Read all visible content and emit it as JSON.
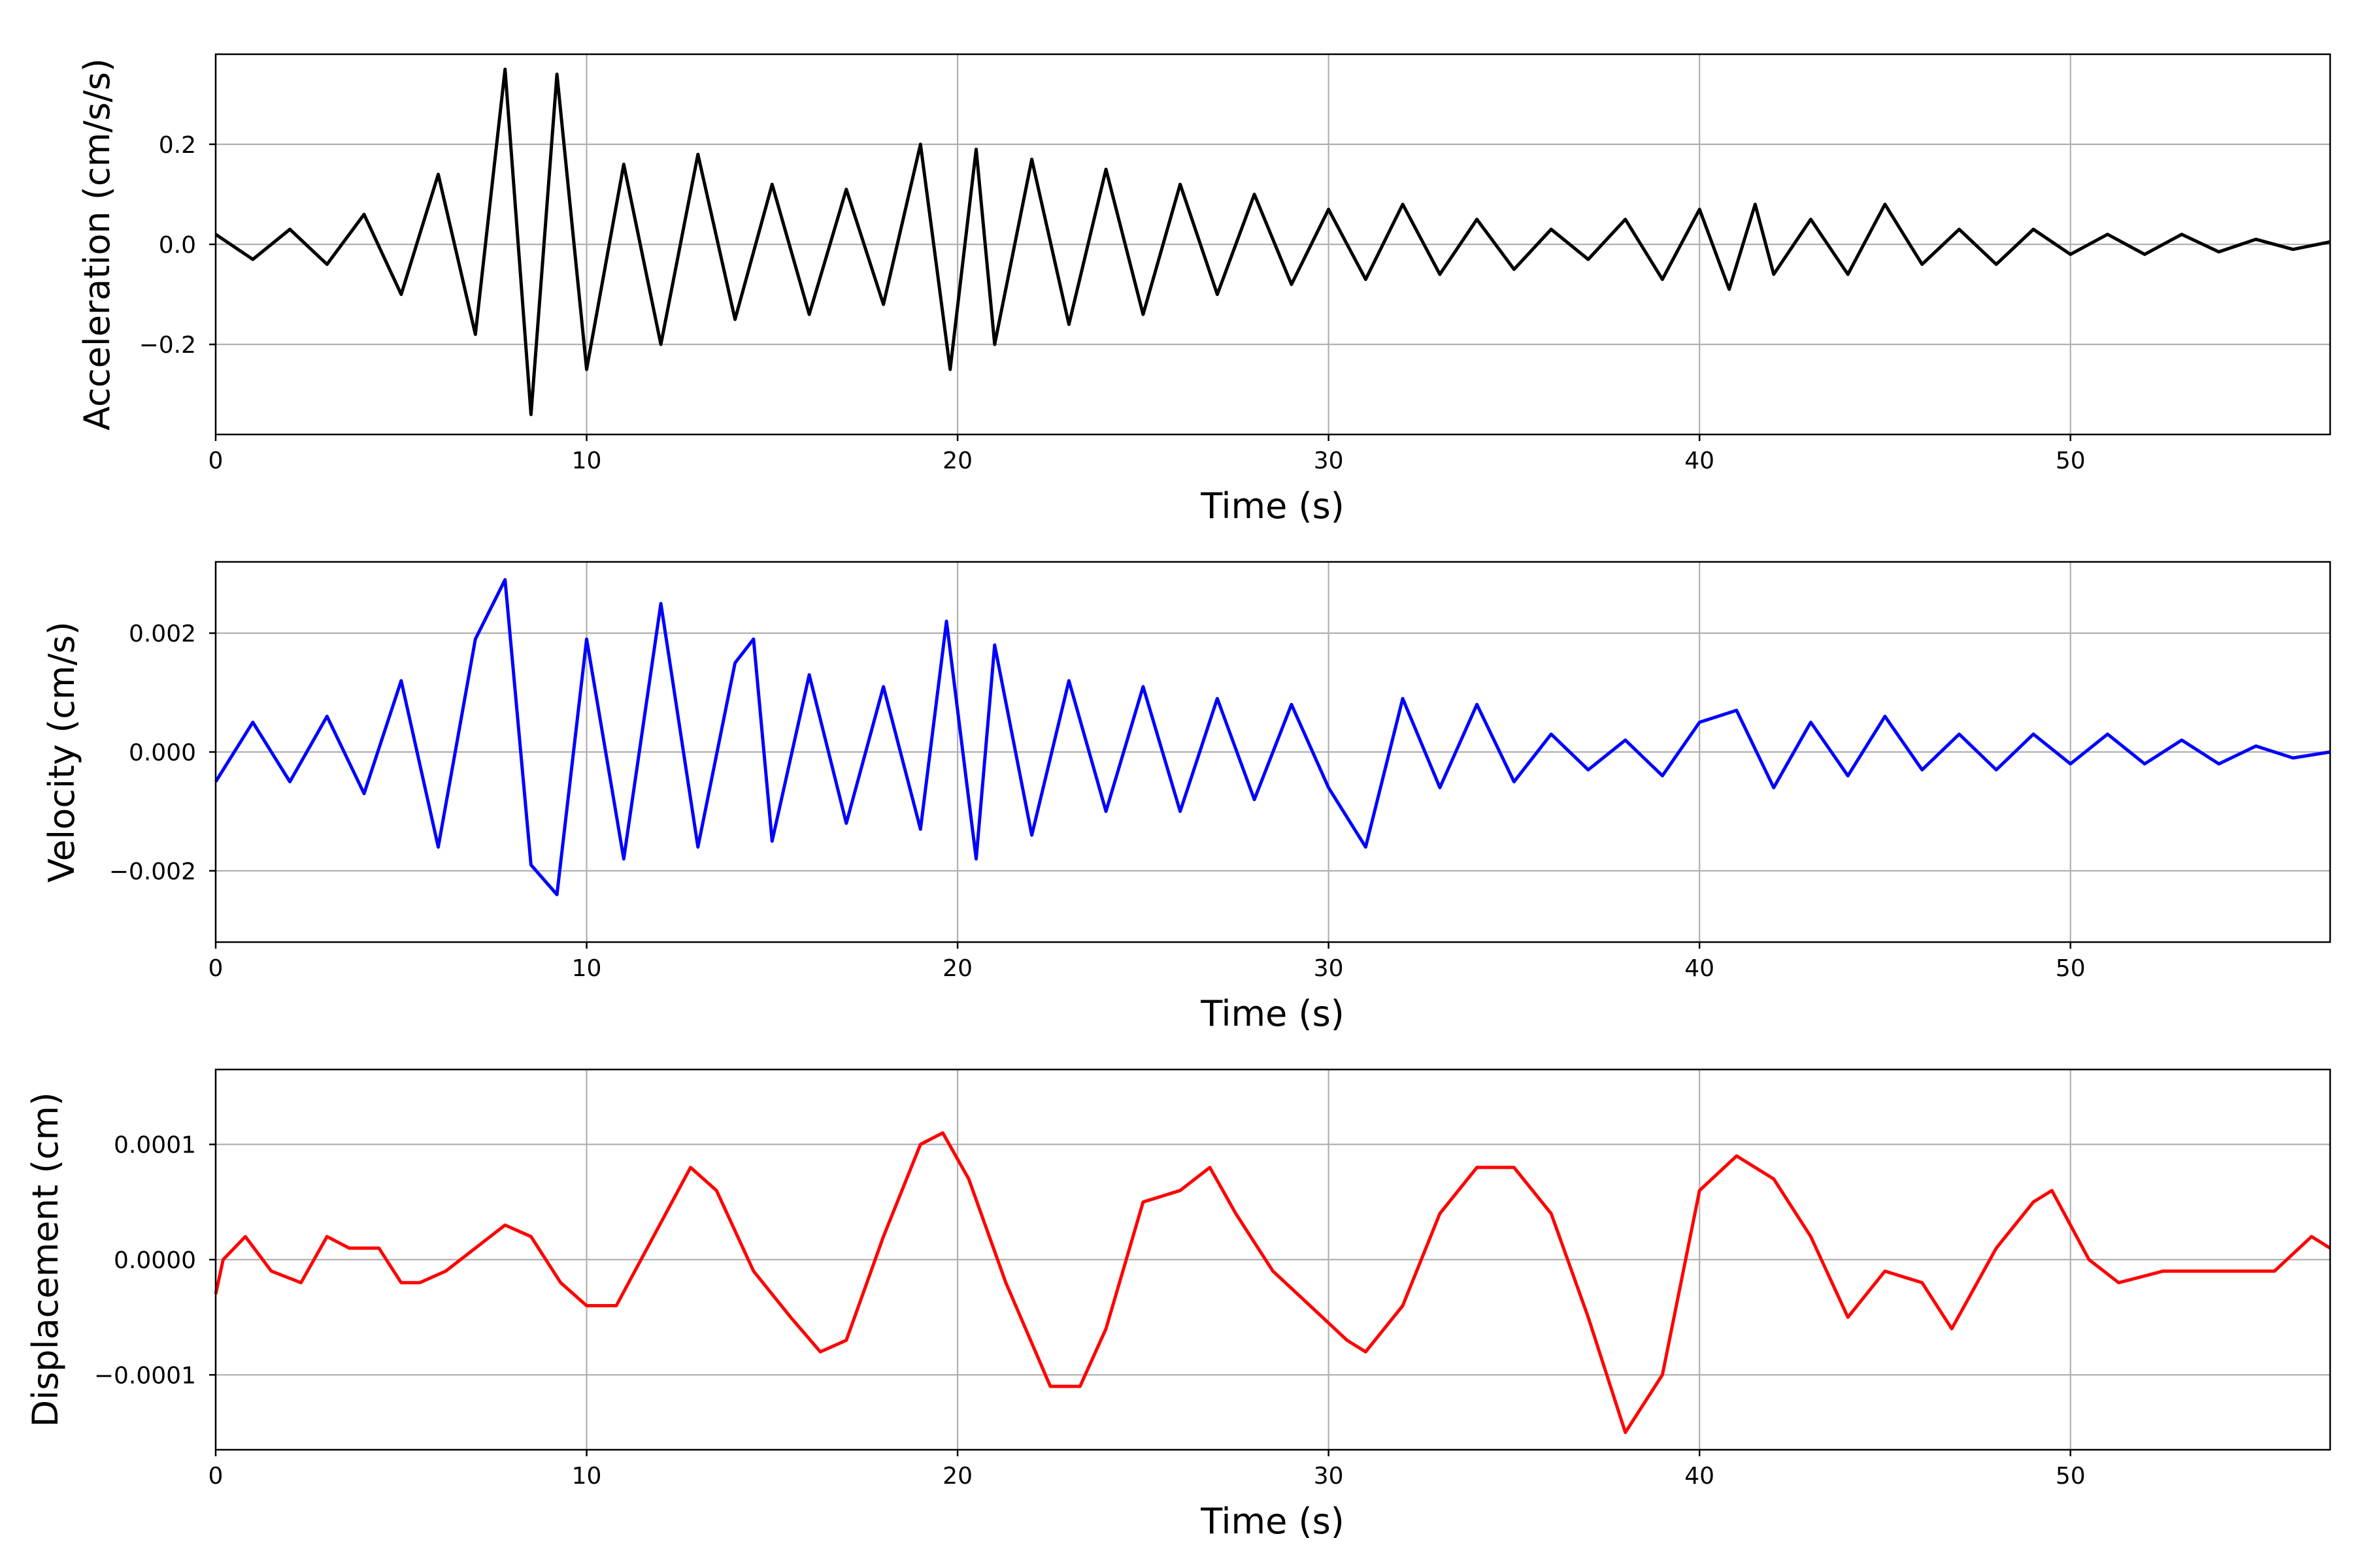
{
  "chart_data": [
    {
      "type": "line",
      "xlabel": "Time (s)",
      "ylabel": "Acceleration (cm/s/s)",
      "xlim": [
        0,
        57
      ],
      "ylim": [
        -0.38,
        0.38
      ],
      "xticks": [
        0,
        10,
        20,
        30,
        40,
        50
      ],
      "xtick_labels": [
        "0",
        "10",
        "20",
        "30",
        "40",
        "50"
      ],
      "yticks": [
        -0.2,
        0.0,
        0.2
      ],
      "ytick_labels": [
        "−0.2",
        "0.0",
        "0.2"
      ],
      "grid": true,
      "color": "#000000",
      "series": [
        {
          "x": [
            0,
            1,
            2,
            3,
            4,
            5,
            6,
            7,
            7.8,
            8.5,
            9.2,
            10,
            11,
            12,
            13,
            14,
            15,
            16,
            17,
            18,
            19,
            19.8,
            20.5,
            21,
            22,
            23,
            24,
            25,
            26,
            27,
            28,
            29,
            30,
            31,
            32,
            33,
            34,
            35,
            36,
            37,
            38,
            39,
            40,
            40.8,
            41.5,
            42,
            43,
            44,
            45,
            46,
            47,
            48,
            49,
            50,
            51,
            52,
            53,
            54,
            55,
            56,
            57
          ],
          "y": [
            0.02,
            -0.03,
            0.03,
            -0.04,
            0.06,
            -0.1,
            0.14,
            -0.18,
            0.35,
            -0.34,
            0.34,
            -0.25,
            0.16,
            -0.2,
            0.18,
            -0.15,
            0.12,
            -0.14,
            0.11,
            -0.12,
            0.2,
            -0.25,
            0.19,
            -0.2,
            0.17,
            -0.16,
            0.15,
            -0.14,
            0.12,
            -0.1,
            0.1,
            -0.08,
            0.07,
            -0.07,
            0.08,
            -0.06,
            0.05,
            -0.05,
            0.03,
            -0.03,
            0.05,
            -0.07,
            0.07,
            -0.09,
            0.08,
            -0.06,
            0.05,
            -0.06,
            0.08,
            -0.04,
            0.03,
            -0.04,
            0.03,
            -0.02,
            0.02,
            -0.02,
            0.02,
            -0.015,
            0.01,
            -0.01,
            0.005
          ]
        }
      ]
    },
    {
      "type": "line",
      "xlabel": "Time (s)",
      "ylabel": "Velocity (cm/s)",
      "xlim": [
        0,
        57
      ],
      "ylim": [
        -0.0032,
        0.0032
      ],
      "xticks": [
        0,
        10,
        20,
        30,
        40,
        50
      ],
      "xtick_labels": [
        "0",
        "10",
        "20",
        "30",
        "40",
        "50"
      ],
      "yticks": [
        -0.002,
        0.0,
        0.002
      ],
      "ytick_labels": [
        "−0.002",
        "0.000",
        "0.002"
      ],
      "grid": true,
      "color": "#0000ff",
      "series": [
        {
          "x": [
            0,
            1,
            2,
            3,
            4,
            5,
            6,
            7,
            7.8,
            8.5,
            9.2,
            10,
            11,
            12,
            13,
            14,
            14.5,
            15,
            16,
            17,
            18,
            19,
            19.7,
            20.5,
            21,
            22,
            23,
            24,
            25,
            26,
            27,
            28,
            29,
            30,
            31,
            32,
            33,
            34,
            35,
            36,
            37,
            38,
            39,
            40,
            41,
            42,
            43,
            44,
            45,
            46,
            47,
            48,
            49,
            50,
            51,
            52,
            53,
            54,
            55,
            56,
            57
          ],
          "y": [
            -0.0005,
            0.0005,
            -0.0005,
            0.0006,
            -0.0007,
            0.0012,
            -0.0016,
            0.0019,
            0.0029,
            -0.0019,
            -0.0024,
            0.0019,
            -0.0018,
            0.0025,
            -0.0016,
            0.0015,
            0.0019,
            -0.0015,
            0.0013,
            -0.0012,
            0.0011,
            -0.0013,
            0.0022,
            -0.0018,
            0.0018,
            -0.0014,
            0.0012,
            -0.001,
            0.0011,
            -0.001,
            0.0009,
            -0.0008,
            0.0008,
            -0.0006,
            -0.0016,
            0.0009,
            -0.0006,
            0.0008,
            -0.0005,
            0.0003,
            -0.0003,
            0.0002,
            -0.0004,
            0.0005,
            0.0007,
            -0.0006,
            0.0005,
            -0.0004,
            0.0006,
            -0.0003,
            0.0003,
            -0.0003,
            0.0003,
            -0.0002,
            0.0003,
            -0.0002,
            0.0002,
            -0.0002,
            0.0001,
            -0.0001,
            0.0
          ]
        }
      ]
    },
    {
      "type": "line",
      "xlabel": "Time (s)",
      "ylabel": "Displacement (cm)",
      "xlim": [
        0,
        57
      ],
      "ylim": [
        -0.000165,
        0.000165
      ],
      "xticks": [
        0,
        10,
        20,
        30,
        40,
        50
      ],
      "xtick_labels": [
        "0",
        "10",
        "20",
        "30",
        "40",
        "50"
      ],
      "yticks": [
        -0.0001,
        0.0,
        0.0001
      ],
      "ytick_labels": [
        "−0.0001",
        "0.0000",
        "0.0001"
      ],
      "grid": true,
      "color": "#ff0000",
      "series": [
        {
          "x": [
            0,
            0.2,
            0.8,
            1.5,
            2.3,
            3.0,
            3.6,
            4.4,
            5.0,
            5.5,
            6.2,
            7.0,
            7.8,
            8.5,
            9.3,
            10.0,
            10.8,
            11.8,
            12.8,
            13.5,
            14.5,
            15.5,
            16.3,
            17.0,
            18.0,
            19.0,
            19.6,
            20.3,
            21.3,
            22.5,
            23.3,
            24.0,
            25.0,
            26.0,
            26.8,
            27.5,
            28.5,
            29.5,
            30.5,
            31.0,
            32.0,
            33.0,
            34.0,
            35.0,
            36.0,
            37.0,
            38.0,
            39.0,
            40.0,
            41.0,
            42.0,
            43.0,
            44.0,
            45.0,
            46.0,
            46.8,
            48.0,
            49.0,
            49.5,
            50.5,
            51.3,
            52.5,
            53.5,
            54.5,
            55.5,
            56.5,
            57.0
          ],
          "y": [
            -3e-05,
            0.0,
            2e-05,
            -1e-05,
            -2e-05,
            2e-05,
            1e-05,
            1e-05,
            -2e-05,
            -2e-05,
            -1e-05,
            1e-05,
            3e-05,
            2e-05,
            -2e-05,
            -4e-05,
            -4e-05,
            2e-05,
            8e-05,
            6e-05,
            -1e-05,
            -5e-05,
            -8e-05,
            -7e-05,
            2e-05,
            0.0001,
            0.00011,
            7e-05,
            -2e-05,
            -0.00011,
            -0.00011,
            -6e-05,
            5e-05,
            6e-05,
            8e-05,
            4e-05,
            -1e-05,
            -4e-05,
            -7e-05,
            -8e-05,
            -4e-05,
            4e-05,
            8e-05,
            8e-05,
            4e-05,
            -5e-05,
            -0.00015,
            -0.0001,
            6e-05,
            9e-05,
            7e-05,
            2e-05,
            -5e-05,
            -1e-05,
            -2e-05,
            -6e-05,
            1e-05,
            5e-05,
            6e-05,
            0.0,
            -2e-05,
            -1e-05,
            -1e-05,
            -1e-05,
            -1e-05,
            2e-05,
            1e-05
          ]
        }
      ]
    }
  ]
}
